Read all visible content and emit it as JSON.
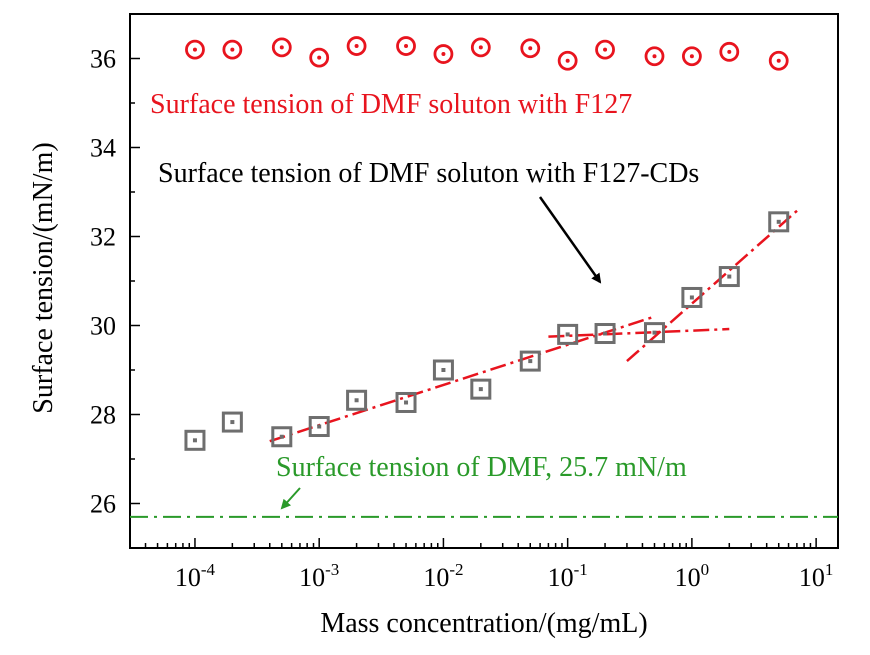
{
  "chart_data": {
    "type": "scatter",
    "xlabel": "Mass concentration/(mg/mL)",
    "ylabel": "Surface tension/(mN/m)",
    "xscale": "log",
    "xlim": [
      3e-05,
      15
    ],
    "ylim": [
      25,
      37
    ],
    "x_ticks": [
      {
        "base": "10",
        "exp": "-4",
        "value": 0.0001
      },
      {
        "base": "10",
        "exp": "-3",
        "value": 0.001
      },
      {
        "base": "10",
        "exp": "-2",
        "value": 0.01
      },
      {
        "base": "10",
        "exp": "-1",
        "value": 0.1
      },
      {
        "base": "10",
        "exp": "0",
        "value": 1
      },
      {
        "base": "10",
        "exp": "1",
        "value": 10
      }
    ],
    "y_ticks": [
      26,
      28,
      30,
      32,
      34,
      36
    ],
    "grid": false,
    "series": [
      {
        "key": "f127",
        "marker": "circle-dot",
        "color": "#e8141e",
        "x": [
          0.0001,
          0.0002,
          0.0005,
          0.001,
          0.002,
          0.005,
          0.01,
          0.02,
          0.05,
          0.1,
          0.2,
          0.5,
          1,
          2,
          5
        ],
        "y": [
          36.2,
          36.2,
          36.25,
          36.02,
          36.28,
          36.28,
          36.1,
          36.25,
          36.23,
          35.95,
          36.2,
          36.05,
          36.05,
          36.15,
          35.95
        ]
      },
      {
        "key": "f127_cds",
        "marker": "square-dot",
        "color": "#6e6e6e",
        "x": [
          0.0001,
          0.0002,
          0.0005,
          0.001,
          0.002,
          0.005,
          0.01,
          0.02,
          0.05,
          0.1,
          0.2,
          0.5,
          1,
          2,
          5
        ],
        "y": [
          27.42,
          27.83,
          27.5,
          27.73,
          28.32,
          28.27,
          29.0,
          28.57,
          29.2,
          29.8,
          29.82,
          29.84,
          30.63,
          31.1,
          32.33
        ]
      }
    ],
    "fit_lines": [
      {
        "x": [
          0.0004,
          0.5
        ],
        "y": [
          27.4,
          30.2
        ],
        "color": "#e8141e"
      },
      {
        "x": [
          0.07,
          2
        ],
        "y": [
          29.75,
          29.92
        ],
        "color": "#e8141e"
      },
      {
        "x": [
          0.3,
          7.5
        ],
        "y": [
          29.2,
          32.65
        ],
        "color": "#e8141e"
      }
    ],
    "reference_line": {
      "y": 25.7,
      "color": "#2a9a2a"
    },
    "annotations": [
      {
        "key": "f127_label",
        "text": "Surface tension of DMF soluton with F127",
        "color": "#e8141e"
      },
      {
        "key": "cds_label",
        "text": "Surface tension of DMF soluton with F127-CDs",
        "color": "#000000"
      },
      {
        "key": "dmf_label",
        "text": "Surface tension of DMF, 25.7 mN/m",
        "color": "#2a9a2a"
      }
    ]
  }
}
